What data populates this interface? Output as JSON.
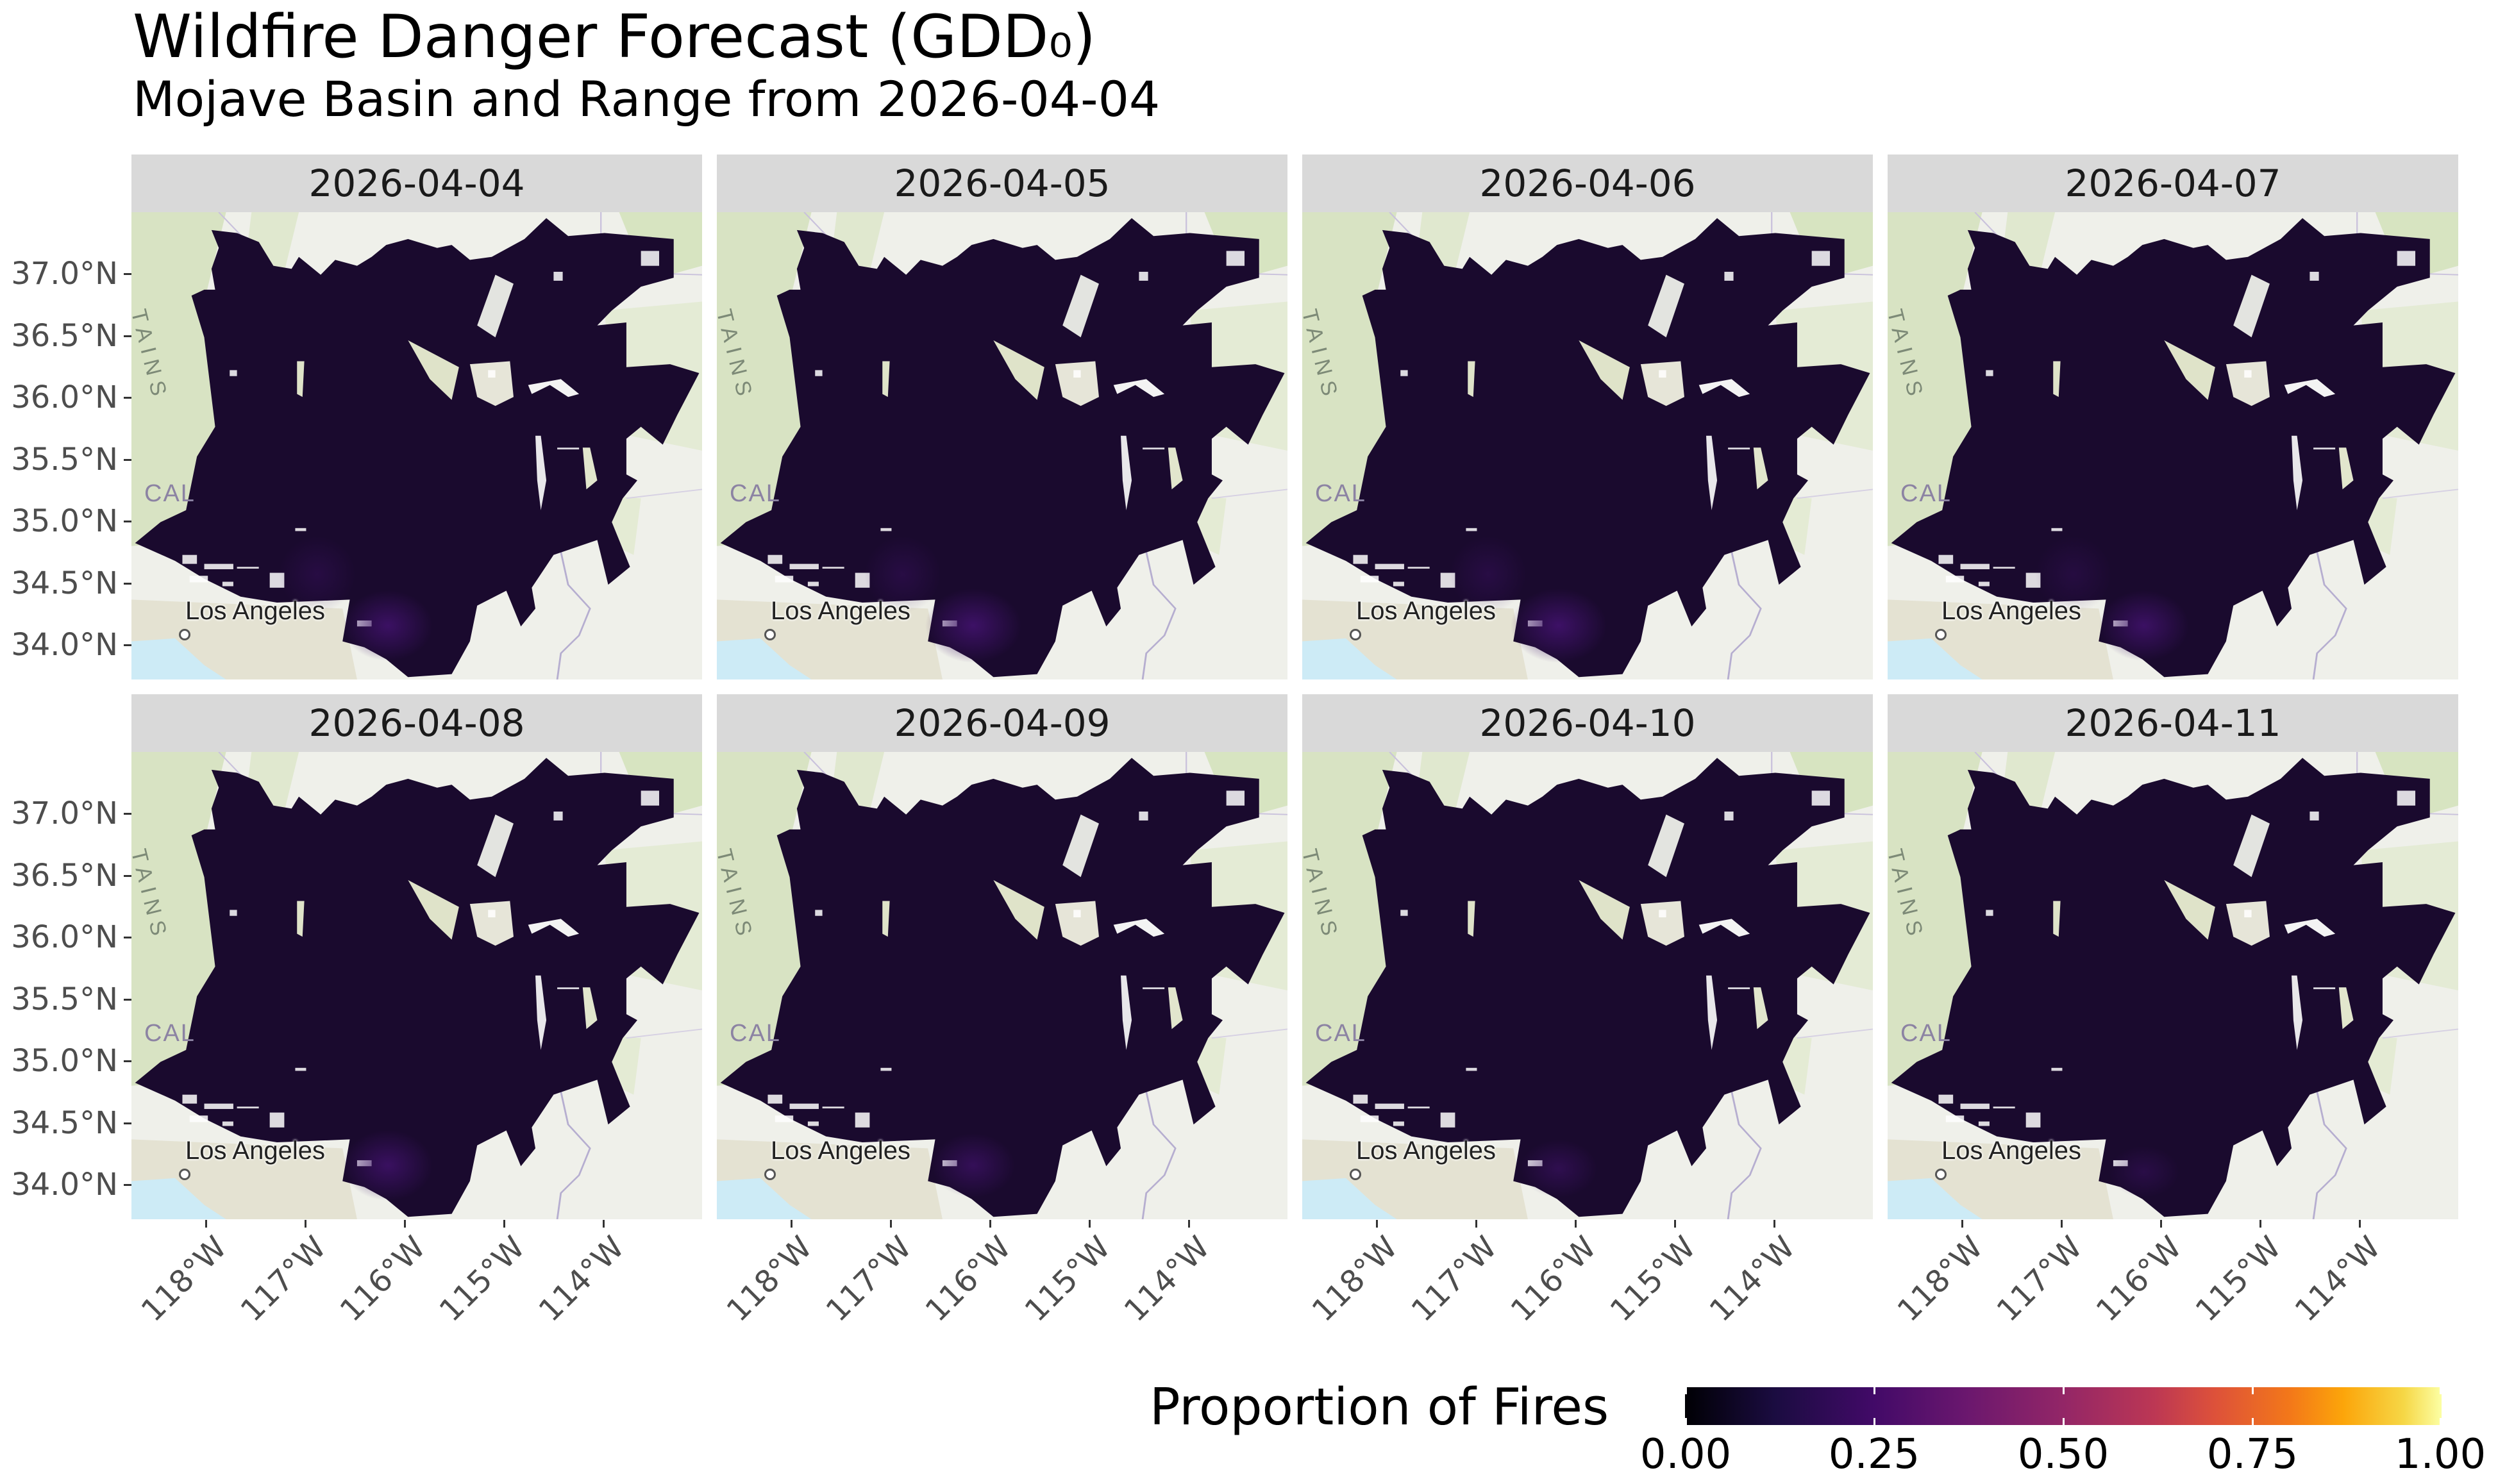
{
  "header": {
    "title": "Wildfire Danger Forecast (GDD₀)",
    "subtitle": "Mojave Basin and Range from 2026-04-04"
  },
  "axes": {
    "y_ticks": [
      "37.0°N",
      "36.5°N",
      "36.0°N",
      "35.5°N",
      "35.0°N",
      "34.5°N",
      "34.0°N"
    ],
    "x_ticks": [
      "118°W",
      "117°W",
      "116°W",
      "115°W",
      "114°W"
    ]
  },
  "basemap_labels": {
    "city": "Los Angeles",
    "state": "CAL",
    "range": "TAINS"
  },
  "panels": [
    {
      "label": "2026-04-04"
    },
    {
      "label": "2026-04-05"
    },
    {
      "label": "2026-04-06"
    },
    {
      "label": "2026-04-07"
    },
    {
      "label": "2026-04-08"
    },
    {
      "label": "2026-04-09"
    },
    {
      "label": "2026-04-10"
    },
    {
      "label": "2026-04-11"
    }
  ],
  "legend": {
    "title": "Proportion of Fires",
    "labels": [
      "0.00",
      "0.25",
      "0.50",
      "0.75",
      "1.00"
    ],
    "colors": [
      "#000004",
      "#420a68",
      "#932667",
      "#dd513a",
      "#fca50a",
      "#fcffa4"
    ]
  },
  "chart_data": {
    "type": "heatmap",
    "title": "Wildfire Danger Forecast (GDD₀)",
    "subtitle": "Mojave Basin and Range from 2026-04-04",
    "xlabel": "",
    "ylabel": "",
    "facets": [
      "2026-04-04",
      "2026-04-05",
      "2026-04-06",
      "2026-04-07",
      "2026-04-08",
      "2026-04-09",
      "2026-04-10",
      "2026-04-11"
    ],
    "facet_layout": {
      "rows": 2,
      "cols": 4
    },
    "x_ticks": [
      -118,
      -117,
      -116,
      -115,
      -114
    ],
    "x_tick_labels": [
      "118°W",
      "117°W",
      "116°W",
      "115°W",
      "114°W"
    ],
    "y_ticks": [
      37.0,
      36.5,
      36.0,
      35.5,
      35.0,
      34.5,
      34.0
    ],
    "y_tick_labels": [
      "37.0°N",
      "36.5°N",
      "36.0°N",
      "35.5°N",
      "35.0°N",
      "34.5°N",
      "34.0°N"
    ],
    "xlim": [
      -118.4,
      -112.7
    ],
    "ylim": [
      33.7,
      37.5
    ],
    "colorbar": {
      "title": "Proportion of Fires",
      "palette": "inferno",
      "range": [
        0,
        1
      ],
      "ticks": [
        0.0,
        0.25,
        0.5,
        0.75,
        1.0
      ]
    },
    "region_typical_value": 0.05,
    "southern_hotspot_peak_value": [
      0.18,
      0.2,
      0.2,
      0.18,
      0.17,
      0.14,
      0.12,
      0.1
    ],
    "legend_position": "bottom",
    "grid": false
  }
}
